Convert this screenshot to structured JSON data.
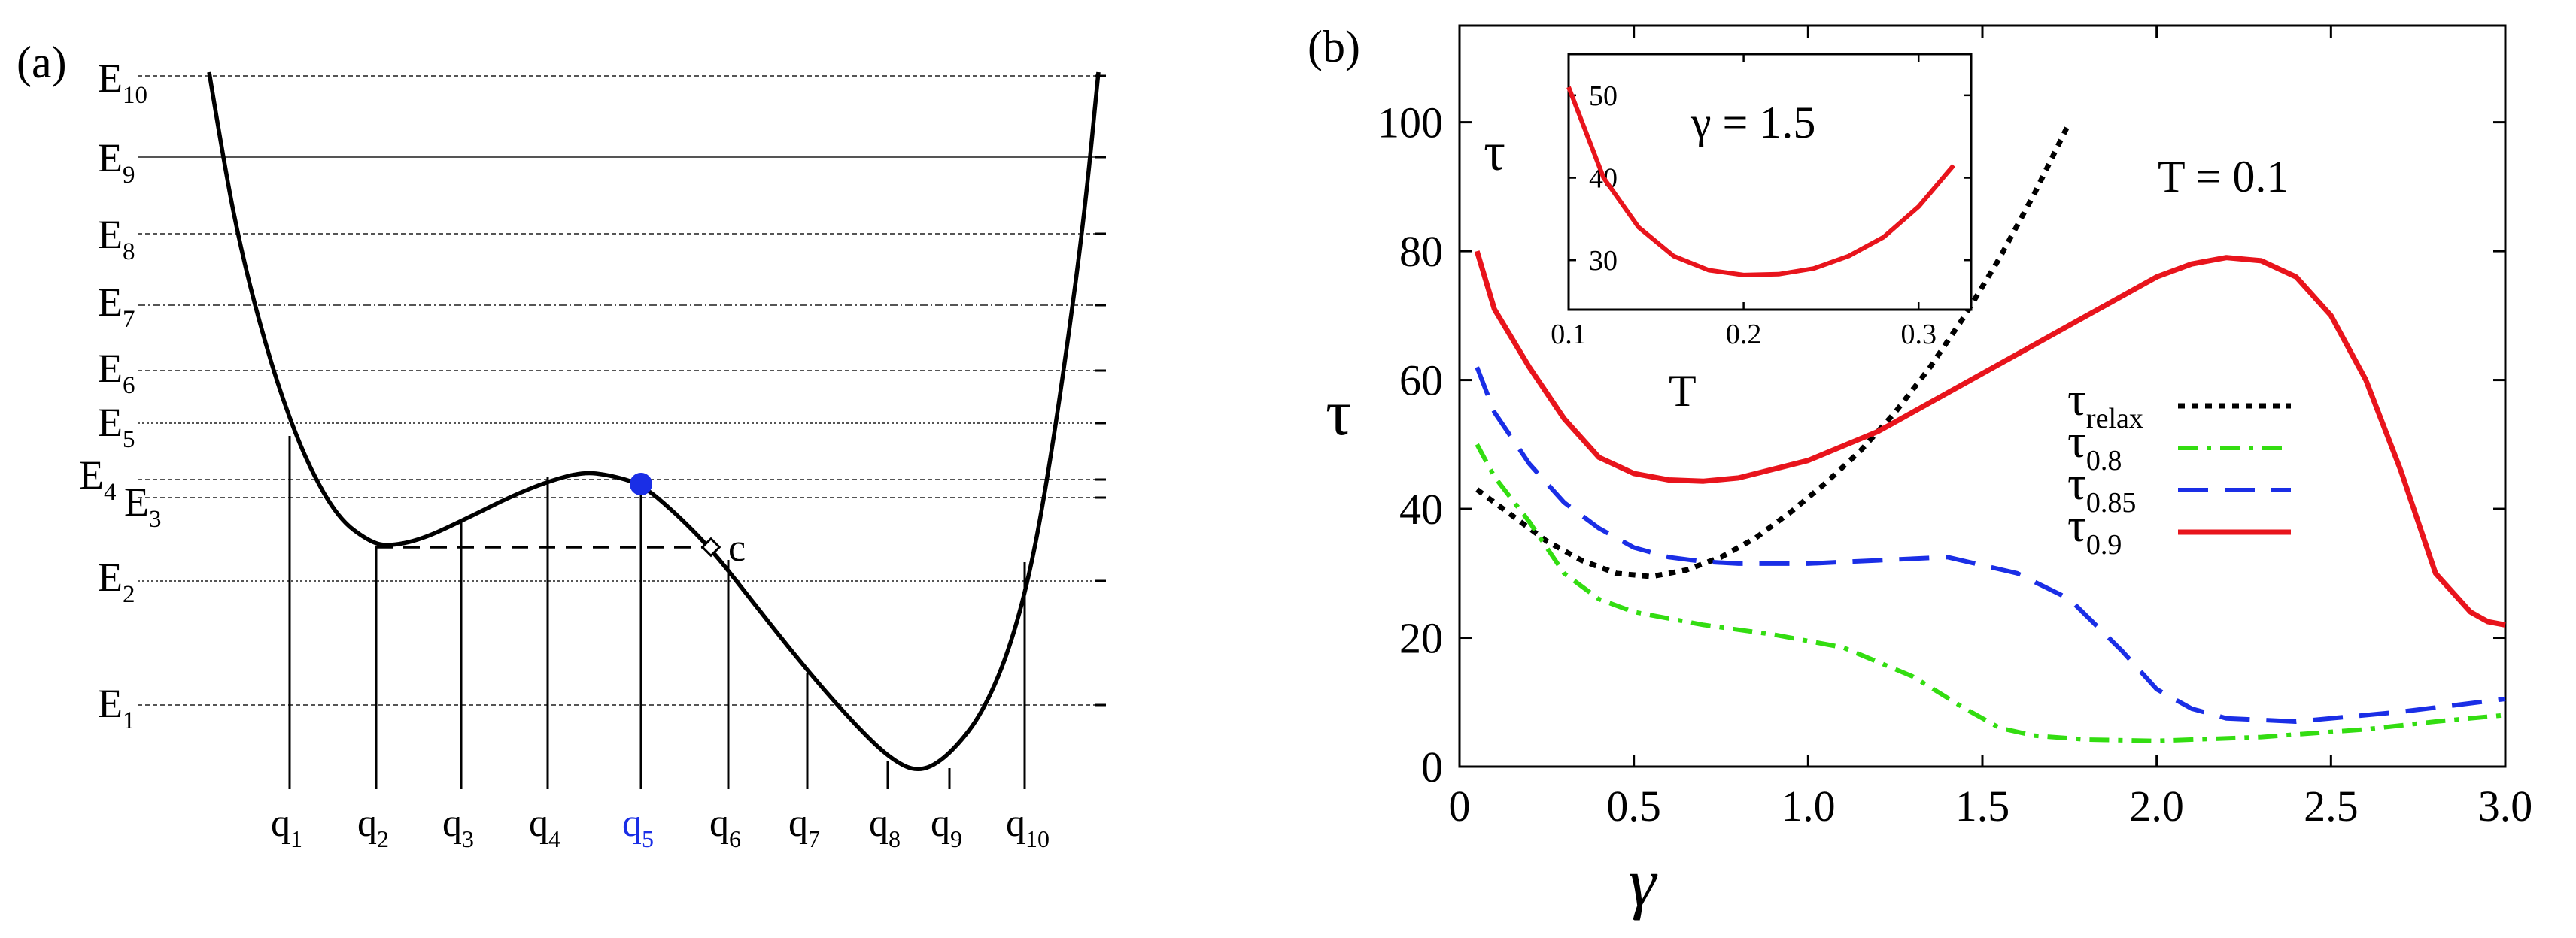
{
  "colors": {
    "black": "#000000",
    "red": "#e8141c",
    "blue": "#1a2ee6",
    "green": "#33dd11",
    "grid": "#9a9a9a",
    "highlight": "#1a2ee6"
  },
  "panel_a": {
    "label": "(a)",
    "energy_levels": [
      {
        "main": "E",
        "sub": "10"
      },
      {
        "main": "E",
        "sub": "9"
      },
      {
        "main": "E",
        "sub": "8"
      },
      {
        "main": "E",
        "sub": "7"
      },
      {
        "main": "E",
        "sub": "6"
      },
      {
        "main": "E",
        "sub": "5"
      },
      {
        "main": "E",
        "sub": "4"
      },
      {
        "main": "E",
        "sub": "3"
      },
      {
        "main": "E",
        "sub": "2"
      },
      {
        "main": "E",
        "sub": "1"
      }
    ],
    "positions": [
      {
        "main": "q",
        "sub": "1"
      },
      {
        "main": "q",
        "sub": "2"
      },
      {
        "main": "q",
        "sub": "3"
      },
      {
        "main": "q",
        "sub": "4"
      },
      {
        "main": "q",
        "sub": "5"
      },
      {
        "main": "q",
        "sub": "6"
      },
      {
        "main": "q",
        "sub": "7"
      },
      {
        "main": "q",
        "sub": "8"
      },
      {
        "main": "q",
        "sub": "9"
      },
      {
        "main": "q",
        "sub": "10"
      }
    ],
    "highlighted_position": "q5",
    "marker_label": "c"
  },
  "chart_data": [
    {
      "type": "line",
      "panel": "(b)",
      "xlabel": "γ",
      "ylabel": "τ",
      "xlim": [
        0,
        3.0
      ],
      "ylim": [
        0,
        115
      ],
      "xticks": [
        "0",
        "0.5",
        "1.0",
        "1.5",
        "2.0",
        "2.5",
        "3.0"
      ],
      "yticks": [
        "0",
        "20",
        "40",
        "60",
        "80",
        "100"
      ],
      "annotation": "T = 0.1",
      "legend": {
        "placement": "right",
        "entries": [
          {
            "main": "τ",
            "sub": "relax"
          },
          {
            "main": "τ",
            "sub": "0.8"
          },
          {
            "main": "τ",
            "sub": "0.85"
          },
          {
            "main": "τ",
            "sub": "0.9"
          }
        ]
      },
      "series": [
        {
          "name": "τrelax",
          "style": "dotted",
          "color": "#000000",
          "x": [
            0.05,
            0.15,
            0.25,
            0.35,
            0.45,
            0.55,
            0.65,
            0.75,
            0.85,
            0.95,
            1.05,
            1.15,
            1.25,
            1.35,
            1.45,
            1.55,
            1.65,
            1.75
          ],
          "y": [
            43,
            39,
            35,
            32,
            30,
            29.5,
            30.5,
            32.5,
            35.5,
            39.5,
            44,
            49,
            55,
            62,
            70,
            79,
            89,
            100
          ]
        },
        {
          "name": "τ0.8",
          "style": "dashdot",
          "color": "#33dd11",
          "x": [
            0.05,
            0.1,
            0.2,
            0.3,
            0.4,
            0.5,
            0.7,
            0.9,
            1.1,
            1.3,
            1.45,
            1.55,
            1.65,
            1.8,
            2.0,
            2.3,
            2.6,
            2.8,
            3.0
          ],
          "y": [
            50,
            45,
            38,
            30,
            26,
            24,
            22,
            20.5,
            18.5,
            14,
            9,
            6,
            4.8,
            4.2,
            4,
            4.6,
            5.8,
            7,
            8
          ]
        },
        {
          "name": "τ0.85",
          "style": "dashed",
          "color": "#1a2ee6",
          "x": [
            0.05,
            0.1,
            0.2,
            0.3,
            0.4,
            0.5,
            0.6,
            0.7,
            0.8,
            1.0,
            1.2,
            1.4,
            1.6,
            1.75,
            1.9,
            2.0,
            2.1,
            2.2,
            2.4,
            2.7,
            3.0
          ],
          "y": [
            62,
            55,
            47,
            41,
            37,
            34,
            32.5,
            31.8,
            31.5,
            31.5,
            32,
            32.5,
            30,
            26,
            18,
            12,
            9,
            7.5,
            7,
            8.5,
            10.5
          ]
        },
        {
          "name": "τ0.9",
          "style": "solid",
          "color": "#e8141c",
          "x": [
            0.05,
            0.1,
            0.2,
            0.3,
            0.4,
            0.5,
            0.6,
            0.7,
            0.8,
            1.0,
            1.2,
            1.4,
            1.6,
            1.8,
            2.0,
            2.1,
            2.2,
            2.3,
            2.4,
            2.5,
            2.6,
            2.7,
            2.8,
            2.9,
            2.95,
            3.0
          ],
          "y": [
            80,
            71,
            62,
            54,
            48,
            45.5,
            44.5,
            44.3,
            44.8,
            47.5,
            52,
            58,
            64,
            70,
            76,
            78,
            79,
            78.5,
            76,
            70,
            60,
            46,
            30,
            24,
            22.5,
            22
          ]
        }
      ]
    },
    {
      "type": "line",
      "panel": "inset",
      "title": "γ = 1.5",
      "xlabel": "T",
      "ylabel": "τ",
      "xlim": [
        0.1,
        0.33
      ],
      "ylim": [
        24,
        55
      ],
      "xticks": [
        "0.1",
        "0.2",
        "0.3"
      ],
      "yticks": [
        "30",
        "40",
        "50"
      ],
      "series": [
        {
          "name": "τ0.9",
          "style": "solid",
          "color": "#e8141c",
          "x": [
            0.1,
            0.12,
            0.14,
            0.16,
            0.18,
            0.2,
            0.22,
            0.24,
            0.26,
            0.28,
            0.3,
            0.32
          ],
          "y": [
            51,
            40,
            34,
            30.5,
            28.8,
            28.2,
            28.3,
            29,
            30.5,
            32.8,
            36.5,
            41.5
          ]
        }
      ]
    }
  ]
}
